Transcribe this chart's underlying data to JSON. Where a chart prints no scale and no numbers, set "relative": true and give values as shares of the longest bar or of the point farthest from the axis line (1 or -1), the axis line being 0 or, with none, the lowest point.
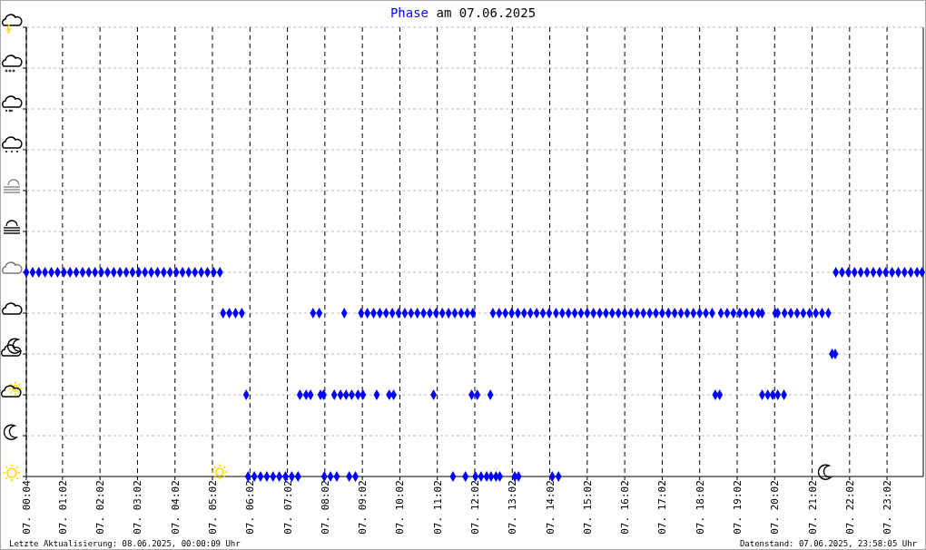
{
  "chart_data": {
    "type": "scatter",
    "title": "Phase am 07.06.2025",
    "marker": "diamond",
    "grid": true,
    "xlim": [
      "2025-06-07T00:04",
      "2025-06-08T00:00"
    ],
    "xticks": [
      {
        "value": "2025-06-07T00:04",
        "label": "07. 00:04"
      },
      {
        "value": "2025-06-07T01:02",
        "label": "07. 01:02"
      },
      {
        "value": "2025-06-07T02:02",
        "label": "07. 02:02"
      },
      {
        "value": "2025-06-07T03:02",
        "label": "07. 03:02"
      },
      {
        "value": "2025-06-07T04:02",
        "label": "07. 04:02"
      },
      {
        "value": "2025-06-07T05:02",
        "label": "07. 05:02"
      },
      {
        "value": "2025-06-07T06:02",
        "label": "07. 06:02"
      },
      {
        "value": "2025-06-07T07:02",
        "label": "07. 07:02"
      },
      {
        "value": "2025-06-07T08:02",
        "label": "07. 08:02"
      },
      {
        "value": "2025-06-07T09:02",
        "label": "07. 09:02"
      },
      {
        "value": "2025-06-07T10:02",
        "label": "07. 10:02"
      },
      {
        "value": "2025-06-07T11:02",
        "label": "07. 11:02"
      },
      {
        "value": "2025-06-07T12:02",
        "label": "07. 12:02"
      },
      {
        "value": "2025-06-07T13:02",
        "label": "07. 13:02"
      },
      {
        "value": "2025-06-07T14:02",
        "label": "07. 14:02"
      },
      {
        "value": "2025-06-07T15:02",
        "label": "07. 15:02"
      },
      {
        "value": "2025-06-07T16:02",
        "label": "07. 16:02"
      },
      {
        "value": "2025-06-07T17:02",
        "label": "07. 17:02"
      },
      {
        "value": "2025-06-07T18:02",
        "label": "07. 18:02"
      },
      {
        "value": "2025-06-07T19:02",
        "label": "07. 19:02"
      },
      {
        "value": "2025-06-07T20:02",
        "label": "07. 20:02"
      },
      {
        "value": "2025-06-07T21:02",
        "label": "07. 21:02"
      },
      {
        "value": "2025-06-07T22:02",
        "label": "07. 22:02"
      },
      {
        "value": "2025-06-07T23:02",
        "label": "07. 23:02"
      }
    ],
    "relative": true,
    "annotations": [
      "Letzte Aktualisierung: 08.06.2025, 00:00:09 Uhr",
      "Datenstand: 07.06.2025, 23:58:05 Uhr"
    ],
    "series": [
      {
        "color": "#0000ff",
        "x": [
          "2025-06-07T00:04",
          "2025-06-07T00:14",
          "2025-06-07T00:24",
          "2025-06-07T00:34",
          "2025-06-07T00:44",
          "2025-06-07T00:54",
          "2025-06-07T01:04",
          "2025-06-07T01:14",
          "2025-06-07T01:24",
          "2025-06-07T01:34",
          "2025-06-07T01:44",
          "2025-06-07T01:54",
          "2025-06-07T02:04",
          "2025-06-07T02:14",
          "2025-06-07T02:24",
          "2025-06-07T02:34",
          "2025-06-07T02:44",
          "2025-06-07T02:54",
          "2025-06-07T03:04",
          "2025-06-07T03:14",
          "2025-06-07T03:24",
          "2025-06-07T03:34",
          "2025-06-07T03:44",
          "2025-06-07T03:54",
          "2025-06-07T04:04",
          "2025-06-07T04:14",
          "2025-06-07T04:24",
          "2025-06-07T04:34",
          "2025-06-07T04:44",
          "2025-06-07T04:54",
          "2025-06-07T05:04",
          "2025-06-07T05:14",
          "2025-06-07T05:19",
          "2025-06-07T05:29",
          "2025-06-07T05:39",
          "2025-06-07T05:49",
          "2025-06-07T05:56",
          "2025-06-07T05:59",
          "2025-06-07T06:09",
          "2025-06-07T06:19",
          "2025-06-07T06:29",
          "2025-06-07T06:39",
          "2025-06-07T06:49",
          "2025-06-07T06:59",
          "2025-06-07T07:09",
          "2025-06-07T07:19",
          "2025-06-07T07:22",
          "2025-06-07T07:32",
          "2025-06-07T07:39",
          "2025-06-07T07:43",
          "2025-06-07T07:53",
          "2025-06-07T07:55",
          "2025-06-07T08:00",
          "2025-06-07T08:01",
          "2025-06-07T08:11",
          "2025-06-07T08:21",
          "2025-06-07T08:17",
          "2025-06-07T08:27",
          "2025-06-07T08:36",
          "2025-06-07T08:45",
          "2025-06-07T08:55",
          "2025-06-07T09:03",
          "2025-06-07T09:25",
          "2025-06-07T09:45",
          "2025-06-07T09:52",
          "2025-06-07T10:56",
          "2025-06-07T11:57",
          "2025-06-07T12:06",
          "2025-06-07T12:27",
          "2025-06-07T08:33",
          "2025-06-07T09:00",
          "2025-06-07T09:10",
          "2025-06-07T09:20",
          "2025-06-07T09:30",
          "2025-06-07T09:40",
          "2025-06-07T09:50",
          "2025-06-07T10:00",
          "2025-06-07T10:10",
          "2025-06-07T10:20",
          "2025-06-07T10:30",
          "2025-06-07T10:40",
          "2025-06-07T10:50",
          "2025-06-07T11:00",
          "2025-06-07T11:10",
          "2025-06-07T11:20",
          "2025-06-07T11:30",
          "2025-06-07T11:40",
          "2025-06-07T11:50",
          "2025-06-07T11:59",
          "2025-06-07T08:41",
          "2025-06-07T08:51",
          "2025-06-07T11:27",
          "2025-06-07T11:47",
          "2025-06-07T12:03",
          "2025-06-07T12:12",
          "2025-06-07T12:21",
          "2025-06-07T12:28",
          "2025-06-07T12:36",
          "2025-06-07T12:42",
          "2025-06-07T13:06",
          "2025-06-07T13:12",
          "2025-06-07T14:06",
          "2025-06-07T14:16",
          "2025-06-07T12:31",
          "2025-06-07T12:41",
          "2025-06-07T12:51",
          "2025-06-07T13:01",
          "2025-06-07T13:11",
          "2025-06-07T13:21",
          "2025-06-07T13:31",
          "2025-06-07T13:41",
          "2025-06-07T13:51",
          "2025-06-07T14:01",
          "2025-06-07T14:12",
          "2025-06-07T14:22",
          "2025-06-07T14:32",
          "2025-06-07T14:42",
          "2025-06-07T14:52",
          "2025-06-07T15:02",
          "2025-06-07T15:12",
          "2025-06-07T15:22",
          "2025-06-07T15:32",
          "2025-06-07T15:42",
          "2025-06-07T15:52",
          "2025-06-07T16:02",
          "2025-06-07T16:12",
          "2025-06-07T16:22",
          "2025-06-07T16:32",
          "2025-06-07T16:42",
          "2025-06-07T16:52",
          "2025-06-07T17:02",
          "2025-06-07T17:12",
          "2025-06-07T17:22",
          "2025-06-07T17:32",
          "2025-06-07T17:42",
          "2025-06-07T17:52",
          "2025-06-07T18:02",
          "2025-06-07T18:12",
          "2025-06-07T18:22",
          "2025-06-07T18:36",
          "2025-06-07T18:46",
          "2025-06-07T18:56",
          "2025-06-07T19:06",
          "2025-06-07T19:16",
          "2025-06-07T19:26",
          "2025-06-07T19:36",
          "2025-06-07T19:42",
          "2025-06-07T20:03",
          "2025-06-07T20:07",
          "2025-06-07T20:18",
          "2025-06-07T20:28",
          "2025-06-07T20:38",
          "2025-06-07T20:48",
          "2025-06-07T20:58",
          "2025-06-07T21:08",
          "2025-06-07T21:18",
          "2025-06-07T21:28",
          "2025-06-07T18:27",
          "2025-06-07T18:34",
          "2025-06-07T19:42",
          "2025-06-07T19:51",
          "2025-06-07T19:59",
          "2025-06-07T20:07",
          "2025-06-07T20:17",
          "2025-06-07T21:34",
          "2025-06-07T21:39",
          "2025-06-07T21:40",
          "2025-06-07T21:50",
          "2025-06-07T22:00",
          "2025-06-07T22:10",
          "2025-06-07T22:20",
          "2025-06-07T22:30",
          "2025-06-07T22:40",
          "2025-06-07T22:50",
          "2025-06-07T23:00",
          "2025-06-07T23:10",
          "2025-06-07T23:20",
          "2025-06-07T23:30",
          "2025-06-07T23:40",
          "2025-06-07T23:50",
          "2025-06-07T23:58"
        ],
        "values": [
          1,
          1,
          1,
          1,
          1,
          1,
          1,
          1,
          1,
          1,
          1,
          1,
          1,
          1,
          1,
          1,
          1,
          1,
          1,
          1,
          1,
          1,
          1,
          1,
          1,
          1,
          1,
          1,
          1,
          1,
          1,
          1,
          0.8,
          0.8,
          0.8,
          0.8,
          0.4,
          0,
          0,
          0,
          0,
          0,
          0,
          0,
          0,
          0,
          0.4,
          0.4,
          0.4,
          0.8,
          0.8,
          0.4,
          0.4,
          0,
          0,
          0,
          0.4,
          0.4,
          0.4,
          0.4,
          0.4,
          0.4,
          0.4,
          0.4,
          0.4,
          0.4,
          0.4,
          0.4,
          0.4,
          0.8,
          0.8,
          0.8,
          0.8,
          0.8,
          0.8,
          0.8,
          0.8,
          0.8,
          0.8,
          0.8,
          0.8,
          0.8,
          0.8,
          0.8,
          0.8,
          0.8,
          0.8,
          0.8,
          0.8,
          0,
          0,
          0,
          0,
          0,
          0,
          0,
          0,
          0,
          0,
          0,
          0,
          0,
          0,
          0.8,
          0.8,
          0.8,
          0.8,
          0.8,
          0.8,
          0.8,
          0.8,
          0.8,
          0.8,
          0.8,
          0.8,
          0.8,
          0.8,
          0.8,
          0.8,
          0.8,
          0.8,
          0.8,
          0.8,
          0.8,
          0.8,
          0.8,
          0.8,
          0.8,
          0.8,
          0.8,
          0.8,
          0.8,
          0.8,
          0.8,
          0.8,
          0.8,
          0.8,
          0.8,
          0.8,
          0.8,
          0.8,
          0.8,
          0.8,
          0.8,
          0.8,
          0.8,
          0.8,
          0.8,
          0.8,
          0.8,
          0.8,
          0.8,
          0.8,
          0.8,
          0.8,
          0.8,
          0.8,
          0.4,
          0.4,
          0.4,
          0.4,
          0.4,
          0.4,
          0.4,
          0.6,
          0.6,
          1,
          1,
          1,
          1,
          1,
          1,
          1,
          1,
          1,
          1,
          1,
          1,
          1,
          1,
          1
        ]
      }
    ]
  }
}
